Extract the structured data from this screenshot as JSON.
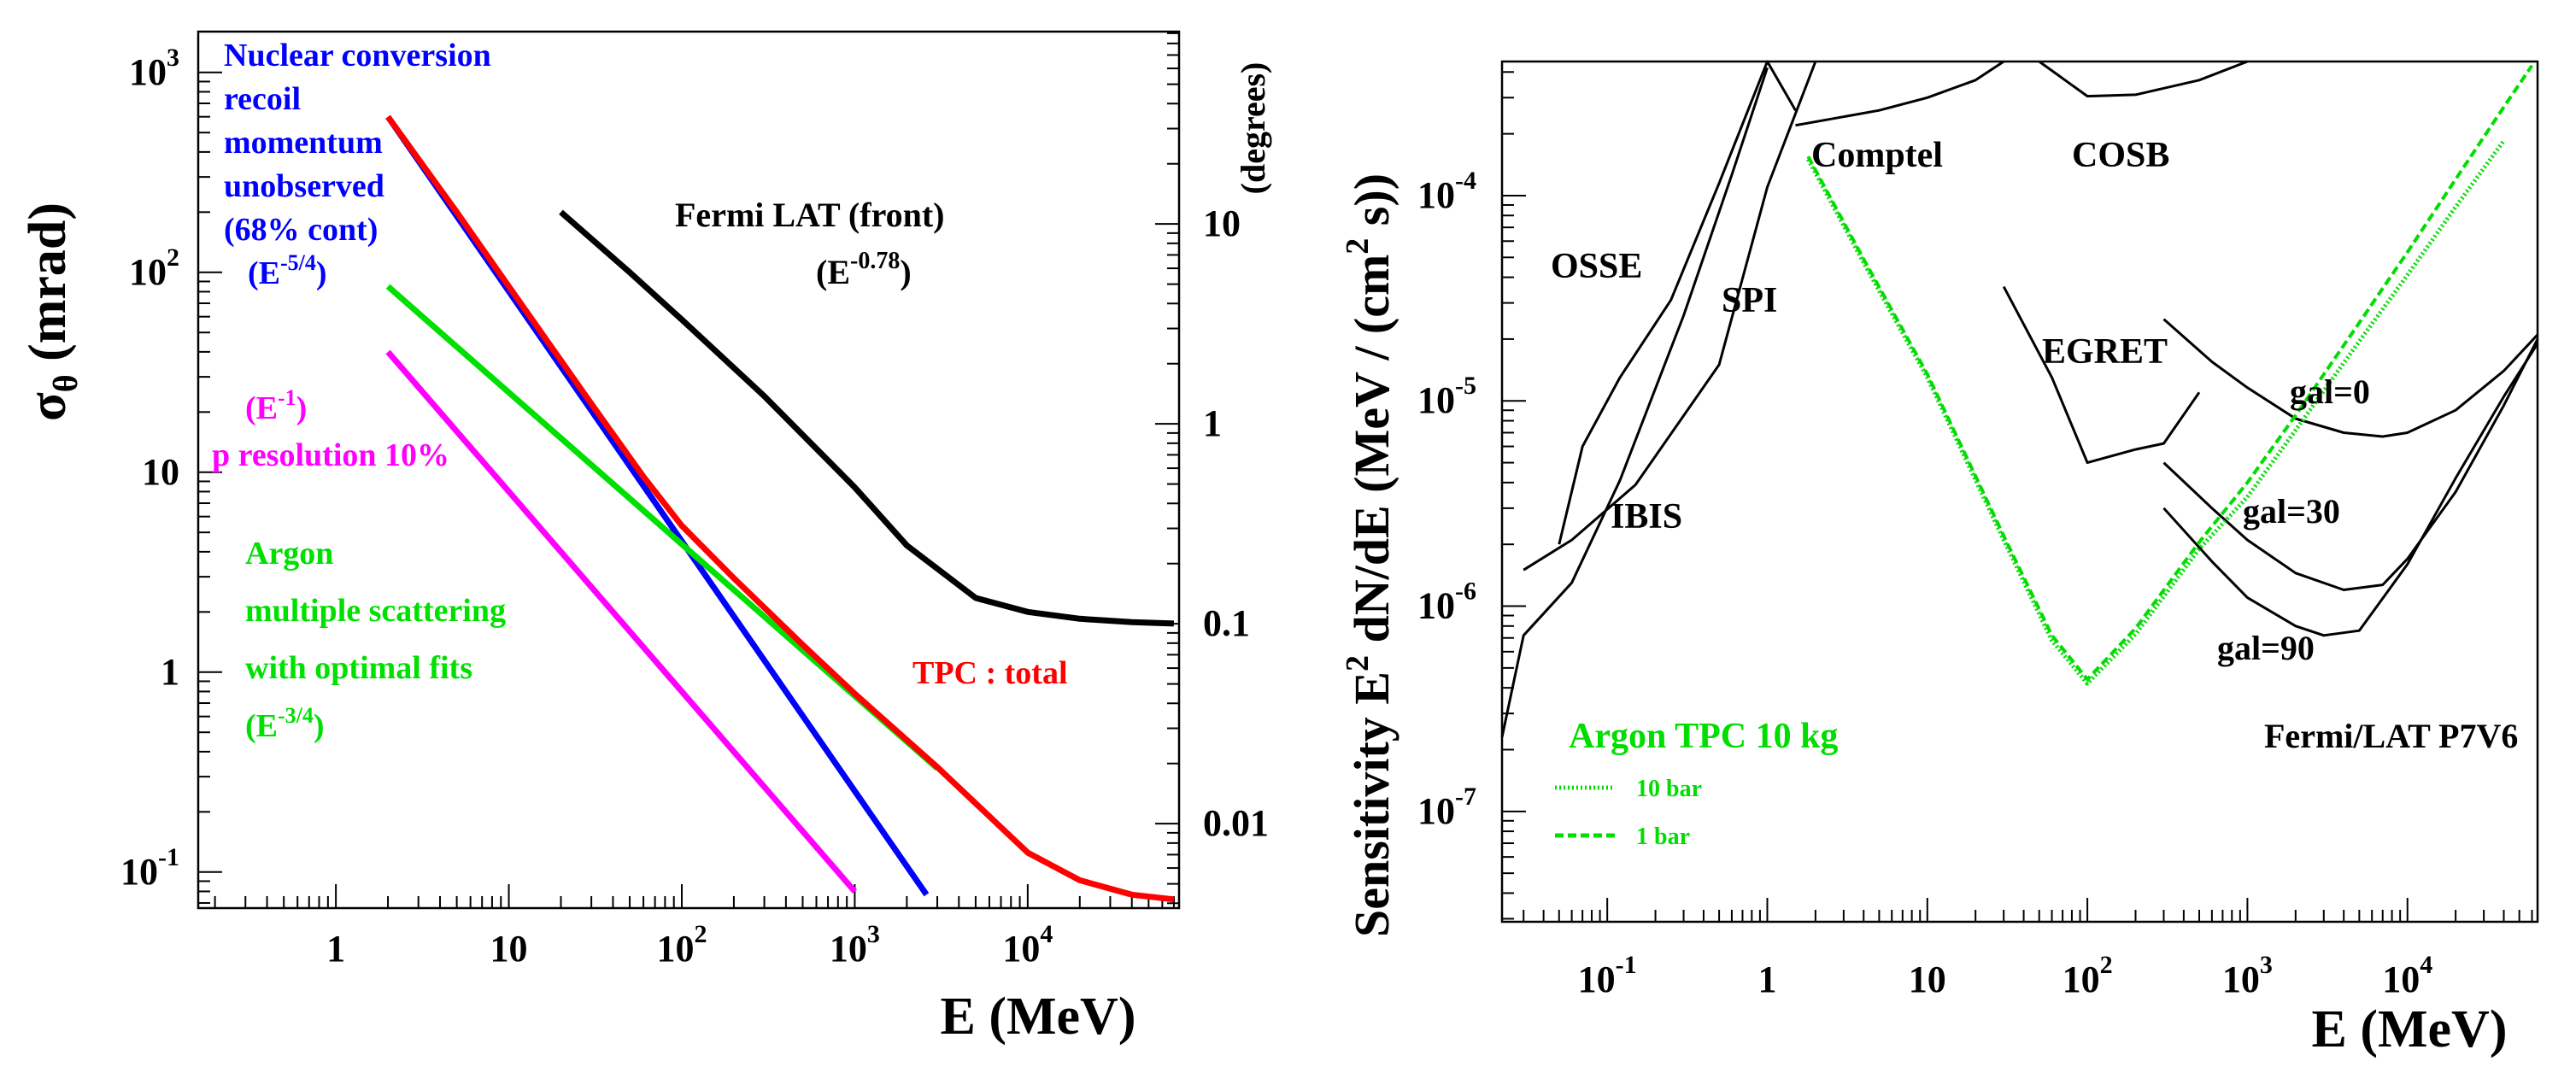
{
  "chart_data": [
    {
      "type": "line",
      "title": "",
      "xlabel": "E (MeV)",
      "ylabel_left": "σθ (mrad)",
      "ylabel_right": "(degrees)",
      "xscale": "log",
      "yscale": "log",
      "xlim": [
        0.16,
        75000
      ],
      "ylim": [
        0.066,
        1600
      ],
      "x_ticks": [
        {
          "v": 1,
          "base": "1",
          "exp": ""
        },
        {
          "v": 10,
          "base": "10",
          "exp": ""
        },
        {
          "v": 100,
          "base": "10",
          "exp": "2"
        },
        {
          "v": 1000,
          "base": "10",
          "exp": "3"
        },
        {
          "v": 10000,
          "base": "10",
          "exp": "4"
        }
      ],
      "y_ticks": [
        {
          "v": 0.1,
          "base": "10",
          "exp": "-1"
        },
        {
          "v": 1,
          "base": "1",
          "exp": ""
        },
        {
          "v": 10,
          "base": "10",
          "exp": ""
        },
        {
          "v": 100,
          "base": "10",
          "exp": "2"
        },
        {
          "v": 1000,
          "base": "10",
          "exp": "3"
        }
      ],
      "y2_ticks": [
        {
          "deg": 0.01,
          "label": "0.01"
        },
        {
          "deg": 0.1,
          "label": "0.1"
        },
        {
          "deg": 1,
          "label": "1"
        },
        {
          "deg": 10,
          "label": "10"
        }
      ],
      "series": [
        {
          "name": "Fermi LAT (front)",
          "color": "#000000",
          "x": [
            20,
            50,
            100,
            300,
            1000,
            2000,
            5000,
            10000,
            20000,
            40000,
            70000
          ],
          "y": [
            200,
            100,
            58,
            24,
            8.4,
            4.3,
            2.35,
            2.0,
            1.85,
            1.78,
            1.75
          ]
        },
        {
          "name": "Nuclear conversion recoil momentum unobserved (68% cont)",
          "color": "#0000ff",
          "x": [
            2,
            2600
          ],
          "y": [
            600,
            0.077
          ]
        },
        {
          "name": "Argon multiple scattering with optimal fits",
          "color": "#00e000",
          "x": [
            2,
            3000
          ],
          "y": [
            85,
            0.33
          ]
        },
        {
          "name": "p resolution 10%",
          "color": "#ff00ff",
          "x": [
            2,
            1000
          ],
          "y": [
            40,
            0.08
          ]
        },
        {
          "name": "TPC : total",
          "color": "#ff0000",
          "x": [
            2,
            5,
            10,
            30,
            60,
            100,
            200,
            500,
            1000,
            3000,
            10000,
            20000,
            40000,
            70000
          ],
          "y": [
            600,
            200,
            85,
            22,
            9.5,
            5.4,
            2.95,
            1.37,
            0.78,
            0.335,
            0.125,
            0.091,
            0.077,
            0.073
          ]
        }
      ],
      "annotations": [
        {
          "lines": [
            "Nuclear conversion",
            "recoil",
            "momentum",
            "unobserved",
            "(68% cont)"
          ],
          "color": "#0000ff"
        },
        {
          "base": "(E",
          "exp": "-5/4",
          "tail": ")",
          "color": "#0000ff"
        },
        {
          "lines": [
            "Fermi LAT (front)"
          ],
          "color": "#000000"
        },
        {
          "base": "(E",
          "exp": "-0.78",
          "tail": ")",
          "color": "#000000"
        },
        {
          "base": "(E",
          "exp": "-1",
          "tail": ")",
          "color": "#ff00ff"
        },
        {
          "lines": [
            "p resolution 10%"
          ],
          "color": "#ff00ff"
        },
        {
          "lines": [
            "Argon",
            "multiple scattering",
            "with optimal fits"
          ],
          "color": "#00e000"
        },
        {
          "base": "(E",
          "exp": "-3/4",
          "tail": ")",
          "color": "#00e000"
        },
        {
          "lines": [
            "TPC : total"
          ],
          "color": "#ff0000"
        }
      ]
    },
    {
      "type": "line",
      "title": "",
      "xlabel": "E (MeV)",
      "ylabel": "Sensitivity  E2 dN/dE (MeV / (cm2 s))",
      "ylabel_parts": {
        "a": "Sensitivity  E",
        "a_exp": "2",
        "b": " dN/dE (MeV / (cm",
        "b_exp": "2",
        "c": " s))"
      },
      "xscale": "log",
      "yscale": "log",
      "xlim": [
        0.022,
        65000
      ],
      "ylim": [
        2.9e-08,
        0.00045
      ],
      "x_ticks": [
        {
          "v": 0.1,
          "base": "10",
          "exp": "-1"
        },
        {
          "v": 1,
          "base": "1",
          "exp": ""
        },
        {
          "v": 10,
          "base": "10",
          "exp": ""
        },
        {
          "v": 100,
          "base": "10",
          "exp": "2"
        },
        {
          "v": 1000,
          "base": "10",
          "exp": "3"
        },
        {
          "v": 10000,
          "base": "10",
          "exp": "4"
        }
      ],
      "y_ticks": [
        {
          "v": 1e-07,
          "base": "10",
          "exp": "-7"
        },
        {
          "v": 1e-06,
          "base": "10",
          "exp": "-6"
        },
        {
          "v": 1e-05,
          "base": "10",
          "exp": "-5"
        },
        {
          "v": 0.0001,
          "base": "10",
          "exp": "-4"
        }
      ],
      "series": [
        {
          "name": "IBIS",
          "color": "#000000",
          "x": [
            0.022,
            0.03,
            0.06,
            0.12,
            0.3,
            0.6,
            1.0
          ],
          "y": [
            2.3e-07,
            7.2e-07,
            1.3e-06,
            4.1e-06,
            2.6e-05,
            0.000126,
            0.00042
          ]
        },
        {
          "name": "SPI",
          "color": "#000000",
          "x": [
            0.03,
            0.06,
            0.15,
            0.5,
            1.0,
            2.0
          ],
          "y": [
            1.5e-06,
            2.1e-06,
            3.9e-06,
            1.5e-05,
            0.00011,
            0.00045
          ]
        },
        {
          "name": "OSSE",
          "color": "#000000",
          "x": [
            0.05,
            0.07,
            0.12,
            0.25,
            0.5,
            1.0,
            1.5
          ],
          "y": [
            2e-06,
            6e-06,
            1.3e-05,
            3.1e-05,
            0.000115,
            0.00045,
            0.00026
          ]
        },
        {
          "name": "Comptel",
          "color": "#000000",
          "x": [
            1.5,
            5,
            10,
            20,
            30
          ],
          "y": [
            0.00022,
            0.00026,
            0.0003,
            0.000365,
            0.00045
          ]
        },
        {
          "name": "COSB",
          "color": "#000000",
          "x": [
            50,
            100,
            200,
            500,
            1000
          ],
          "y": [
            0.00045,
            0.000305,
            0.00031,
            0.000365,
            0.00045
          ]
        },
        {
          "name": "EGRET",
          "color": "#000000",
          "x": [
            30,
            60,
            100,
            200,
            300,
            500
          ],
          "y": [
            3.6e-05,
            1.3e-05,
            5e-06,
            5.8e-06,
            6.2e-06,
            1.1e-05
          ]
        },
        {
          "name": "gal=0",
          "color": "#000000",
          "x": [
            300,
            600,
            1000,
            2000,
            4000,
            7000,
            10000,
            20000,
            40000,
            65000
          ],
          "y": [
            2.5e-05,
            1.55e-05,
            1.16e-05,
            8.2e-06,
            7e-06,
            6.7e-06,
            7e-06,
            9e-06,
            1.4e-05,
            2.1e-05
          ]
        },
        {
          "name": "gal=30",
          "color": "#000000",
          "x": [
            300,
            600,
            1000,
            2000,
            4000,
            7000,
            10000,
            20000,
            40000,
            65000
          ],
          "y": [
            5e-06,
            3e-06,
            2.1e-06,
            1.45e-06,
            1.2e-06,
            1.27e-06,
            1.7e-06,
            3.6e-06,
            9.5e-06,
            2e-05
          ]
        },
        {
          "name": "gal=90",
          "color": "#000000",
          "x": [
            300,
            600,
            1000,
            2000,
            3000,
            5000,
            10000,
            20000,
            40000,
            65000
          ],
          "y": [
            3e-06,
            1.65e-06,
            1.1e-06,
            8e-07,
            7.2e-07,
            7.6e-07,
            1.6e-06,
            4.2e-06,
            1.05e-05,
            1.9e-05
          ]
        },
        {
          "name": "Argon TPC 10 bar",
          "color": "#00dd00",
          "dash": "dotted",
          "x": [
            1.8,
            4,
            10,
            30,
            60,
            100,
            200,
            500,
            1000,
            2000,
            5000,
            10000,
            20000,
            40000
          ],
          "y": [
            0.00015,
            4.7e-05,
            1.3e-05,
            2.1e-06,
            6.8e-07,
            4.2e-07,
            7.3e-07,
            1.9e-06,
            3.4e-06,
            7.2e-06,
            1.95e-05,
            4.1e-05,
            8.8e-05,
            0.000185
          ]
        },
        {
          "name": "Argon TPC 1 bar",
          "color": "#00dd00",
          "dash": "dashed",
          "x": [
            1.8,
            4,
            10,
            30,
            60,
            100,
            200,
            500,
            1000,
            2000,
            5000,
            10000,
            20000,
            40000,
            60000
          ],
          "y": [
            0.000155,
            4.9e-05,
            1.35e-05,
            2.2e-06,
            7.2e-07,
            4.4e-07,
            7.8e-07,
            2.05e-06,
            4e-06,
            8.5e-06,
            2.4e-05,
            5.3e-05,
            0.00012,
            0.00027,
            0.00043
          ]
        }
      ],
      "labels": [
        {
          "text": "Comptel"
        },
        {
          "text": "COSB"
        },
        {
          "text": "OSSE"
        },
        {
          "text": "SPI"
        },
        {
          "text": "EGRET"
        },
        {
          "text": "IBIS"
        },
        {
          "text": "gal=0"
        },
        {
          "text": "gal=30"
        },
        {
          "text": "gal=90"
        },
        {
          "text": "Fermi/LAT P7V6"
        }
      ],
      "legend": {
        "title": "Argon TPC 10 kg",
        "items": [
          {
            "label": "10 bar",
            "dash": "dotted"
          },
          {
            "label": "1 bar",
            "dash": "dashed"
          }
        ],
        "color": "#00dd00"
      }
    }
  ]
}
